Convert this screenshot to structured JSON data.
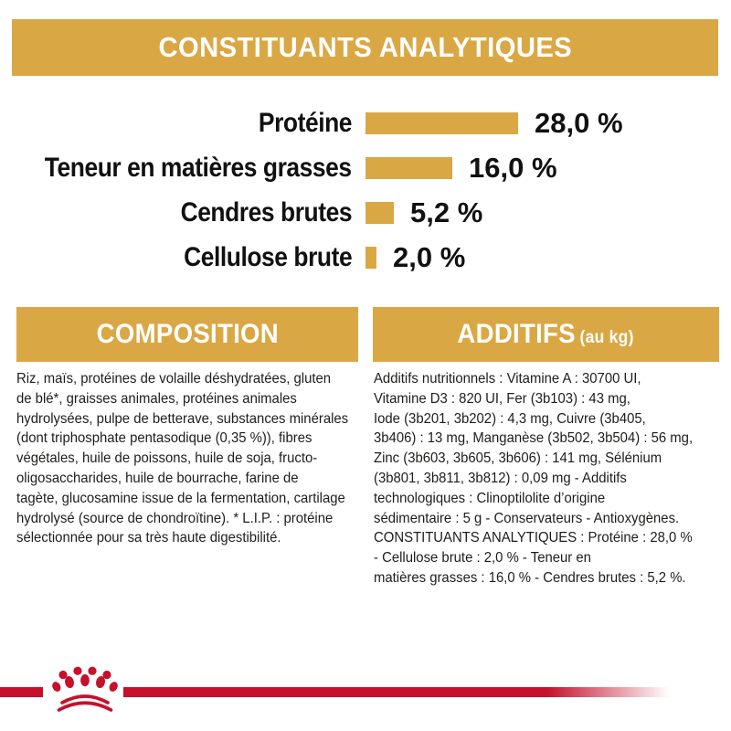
{
  "banner": {
    "title": "CONSTITUANTS ANALYTIQUES"
  },
  "chart_data": {
    "type": "bar",
    "orientation": "horizontal",
    "title": "CONSTITUANTS ANALYTIQUES",
    "categories": [
      "Protéine",
      "Teneur en matières grasses",
      "Cendres brutes",
      "Cellulose brute"
    ],
    "values": [
      28.0,
      16.0,
      5.2,
      2.0
    ],
    "value_labels": [
      "28,0 %",
      "16,0 %",
      "5,2 %",
      "2,0 %"
    ],
    "unit": "%",
    "xlim": [
      0,
      30
    ],
    "bar_color": "#D9A845"
  },
  "composition": {
    "header": "COMPOSITION",
    "lines": [
      "Riz, maïs, protéines de volaille déshydratées, gluten",
      "de blé*, graisses animales, protéines animales",
      "hydrolysées, pulpe de betterave, substances minérales",
      "(dont triphosphate pentasodique (0,35 %)), fibres",
      "végétales, huile de poissons, huile de soja, fructo-",
      "oligosaccharides, huile de bourrache, farine de",
      "tagète, glucosamine issue de la fermentation, cartilage",
      "hydrolysé (source de chondroïtine). * L.I.P. : protéine",
      "sélectionnée pour sa très haute digestibilité."
    ]
  },
  "additifs": {
    "header": "ADDITIFS",
    "header_suffix": "(au kg)",
    "lines": [
      "Additifs nutritionnels : Vitamine A : 30700 UI,",
      "Vitamine D3 : 820 UI, Fer (3b103) : 43 mg,",
      "Iode (3b201, 3b202) : 4,3 mg, Cuivre (3b405,",
      "3b406) : 13 mg, Manganèse (3b502, 3b504) : 56 mg,",
      "Zinc (3b603, 3b605, 3b606) : 141 mg, Sélénium",
      "(3b801, 3b811, 3b812) : 0,09 mg - Additifs",
      "technologiques : Clinoptilolite d’origine",
      "sédimentaire : 5 g - Conservateurs - Antioxygènes.",
      "CONSTITUANTS ANALYTIQUES : Protéine : 28,0 %",
      "- Cellulose brute : 2,0 % - Teneur en",
      "matières grasses : 16,0 % - Cendres brutes : 5,2 %."
    ]
  },
  "footer": {
    "logo": "royal-canin-crown"
  },
  "colors": {
    "gold": "#D9A845",
    "red": "#C6102C",
    "text": "#1D1D1B"
  }
}
